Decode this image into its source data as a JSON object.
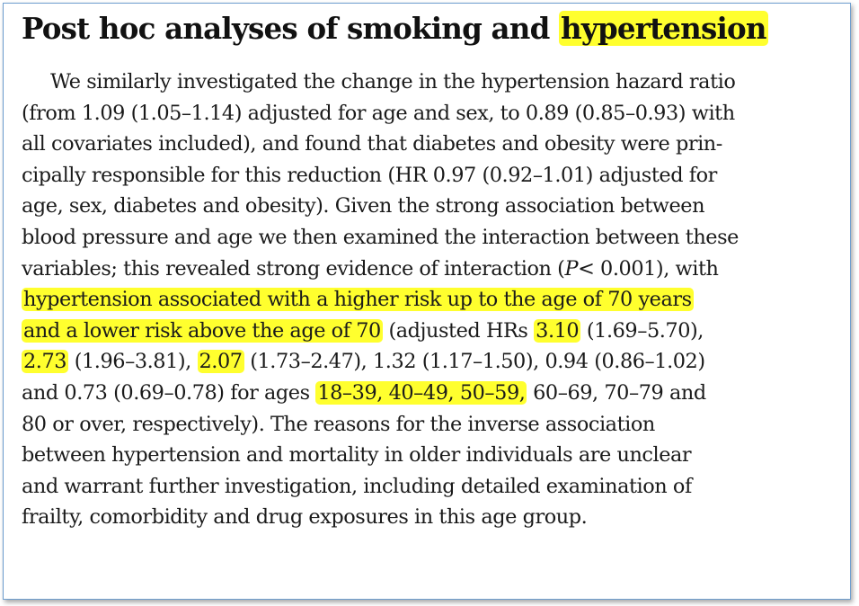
{
  "document": {
    "heading": {
      "prefix": "Post hoc analyses of smoking and ",
      "highlight": "hypertension"
    },
    "paragraph": {
      "line1": "We similarly investigated the change in the hypertension hazard ratio",
      "line2": "(from 1.09 (1.05–1.14) adjusted for age and sex, to 0.89 (0.85–0.93) with",
      "line3": "all covariates included), and found that diabetes and obesity were prin-",
      "line4": "cipally responsible for this reduction (HR 0.97 (0.92–1.01) adjusted for",
      "line5": "age, sex, diabetes and obesity). Given the strong association between",
      "line6": "blood pressure and age we then examined the interaction between these",
      "line7a": "variables; this revealed strong evidence of interaction (",
      "line7_p": "P",
      "line7b": "< 0.001), with",
      "line8_highlight": "hypertension associated with a higher risk up to the age of 70 years",
      "line9_highlight": "and a lower risk above the age of 70",
      "line9b": " (adjusted HRs ",
      "line9_hr1": "3.10",
      "line9c": " (1.69–5.70),",
      "line10_hr2": "2.73",
      "line10b": " (1.96–3.81), ",
      "line10_hr3": "2.07",
      "line10c": " (1.73–2.47), 1.32 (1.17–1.50), 0.94 (0.86–1.02)",
      "line11a": "and 0.73 (0.69–0.78) for ages ",
      "line11_ages": "18–39, 40–49, 50–59,",
      "line11b": " 60–69, 70–79 and",
      "line12": "80 or over, respectively). The reasons for the inverse association",
      "line13": "between hypertension and mortality in older individuals are unclear",
      "line14": "and warrant further investigation, including detailed examination of",
      "line15": "frailty, comorbidity and drug exposures in this age group."
    },
    "highlight_color": "#ffff2e",
    "border_color": "#6e9ecf"
  }
}
